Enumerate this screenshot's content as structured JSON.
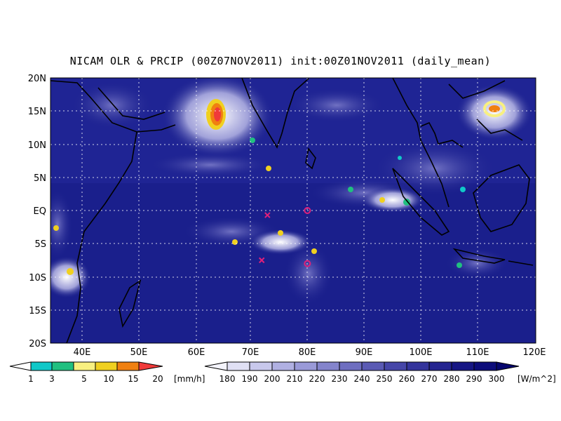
{
  "title": "NICAM OLR & PRCIP (00Z07NOV2011) init:00Z01NOV2011 (daily_mean)",
  "map": {
    "lon_range": [
      35,
      120
    ],
    "lat_range": [
      -20,
      20
    ],
    "lat_ticks": [
      "20N",
      "15N",
      "10N",
      "5N",
      "EQ",
      "5S",
      "10S",
      "15S",
      "20S"
    ],
    "lon_ticks": [
      "40E",
      "50E",
      "60E",
      "70E",
      "80E",
      "90E",
      "100E",
      "110E",
      "120E"
    ],
    "background_color": "#1a1f8c",
    "gridlines": true
  },
  "markers": [
    {
      "shape": "x",
      "lon": 73,
      "lat": -0.7,
      "color": "#e0207a"
    },
    {
      "shape": "x",
      "lon": 72,
      "lat": -7.5,
      "color": "#e0207a"
    },
    {
      "shape": "o",
      "lon": 80,
      "lat": 0.0,
      "color": "#e0207a"
    },
    {
      "shape": "o",
      "lon": 80,
      "lat": -8.0,
      "color": "#e0207a"
    }
  ],
  "precip_colorbar": {
    "labels": [
      "1",
      "3",
      "5",
      "10",
      "15",
      "20"
    ],
    "unit": "[mm/h]",
    "colors": [
      "#10c8c8",
      "#20c080",
      "#f8f080",
      "#f0d020",
      "#f08010",
      "#f03a3a"
    ]
  },
  "olr_colorbar": {
    "labels": [
      "180",
      "190",
      "200",
      "210",
      "220",
      "230",
      "240",
      "250",
      "260",
      "270",
      "280",
      "290",
      "300"
    ],
    "unit": "[W/m^2]",
    "colors": [
      "#f4f4fc",
      "#e0e0f4",
      "#c8c8ec",
      "#b0b0e2",
      "#9a9ad8",
      "#8484cc",
      "#6e6ec0",
      "#5a5ab4",
      "#4646a8",
      "#34349c",
      "#242490",
      "#161684",
      "#0c0c7a",
      "#06066e"
    ]
  }
}
